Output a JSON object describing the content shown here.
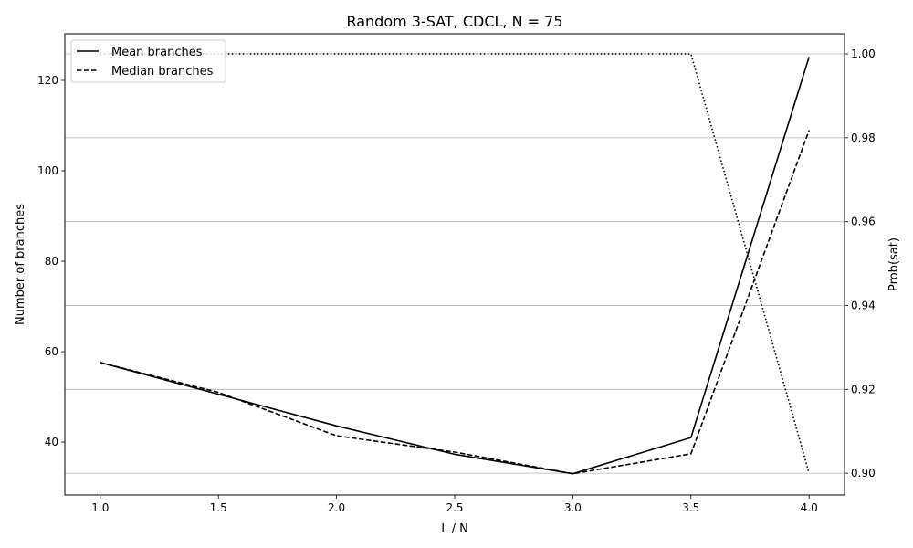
{
  "chart_data": {
    "type": "line",
    "title": "Random 3-SAT, CDCL, N = 75",
    "xlabel": "L / N",
    "ylabel": "Number of branches",
    "y2label": "Prob(sat)",
    "x": [
      1.0,
      1.5,
      2.0,
      2.5,
      3.0,
      3.5,
      4.0
    ],
    "xlim": [
      0.85,
      4.15
    ],
    "ylim": [
      28.3,
      130.3
    ],
    "y2lim": [
      0.8948,
      1.0048
    ],
    "xticks": [
      "1.0",
      "1.5",
      "2.0",
      "2.5",
      "3.0",
      "3.5",
      "4.0"
    ],
    "yticks": [
      "40",
      "60",
      "80",
      "100",
      "120"
    ],
    "y2ticks": [
      "0.90",
      "0.92",
      "0.94",
      "0.96",
      "0.98",
      "1.00"
    ],
    "grid": "horizontal at right-axis ticks",
    "legend": "top-left",
    "series": [
      {
        "name": "Mean branches",
        "axis": "left",
        "style": "solid",
        "values": [
          57.6,
          50.6,
          43.6,
          37.3,
          33.0,
          41.0,
          125.2
        ]
      },
      {
        "name": "Median branches",
        "axis": "left",
        "style": "dashed",
        "values": [
          57.6,
          51.0,
          41.4,
          37.8,
          33.0,
          37.4,
          109.0
        ]
      },
      {
        "name": "",
        "axis": "right",
        "style": "dotted",
        "values": [
          1.0,
          1.0,
          1.0,
          1.0,
          1.0,
          1.0,
          0.9
        ]
      }
    ]
  }
}
